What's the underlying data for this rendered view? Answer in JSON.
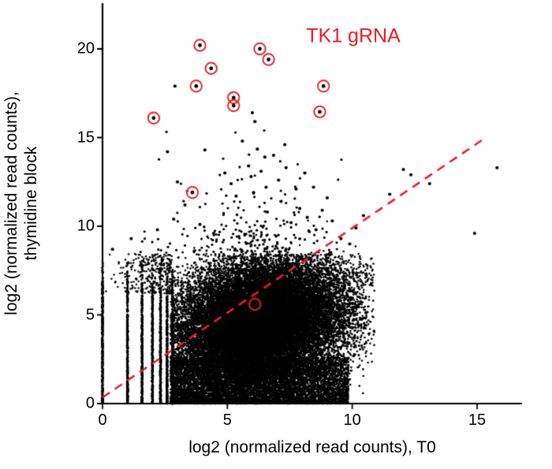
{
  "figure": {
    "annotation": "TK1 gRNA",
    "annotation_color": "#ed1c24"
  },
  "axes": {
    "xlabel": "log2 (normalized read counts), T0",
    "ylabel": [
      "log2 (normalized read counts),",
      "thymidine block"
    ],
    "x_ticks": [
      "0",
      "5",
      "10",
      "15"
    ],
    "y_ticks": [
      "0",
      "5",
      "10",
      "15",
      "20"
    ],
    "x_tick_values": [
      0,
      5,
      10,
      15
    ],
    "y_tick_values": [
      0,
      5,
      10,
      15,
      20
    ],
    "x_range": [
      0,
      16.8
    ],
    "y_range": [
      0,
      22.4
    ]
  },
  "chart_data": {
    "type": "scatter",
    "title": "",
    "xlabel": "log2 (normalized read counts), T0",
    "ylabel": "log2 (normalized read counts), thymidine block",
    "xlim": [
      0,
      16.8
    ],
    "ylim": [
      0,
      22.4
    ],
    "grid": false,
    "legend": "none",
    "point_color": "#000000",
    "highlight_color": "#ed1c24",
    "highlighted_label": "TK1 gRNA",
    "highlighted_points": [
      {
        "x": 3.9,
        "y": 20.2,
        "dot": true
      },
      {
        "x": 6.3,
        "y": 20.0,
        "dot": true
      },
      {
        "x": 6.65,
        "y": 19.4,
        "dot": true
      },
      {
        "x": 4.35,
        "y": 18.9,
        "dot": true
      },
      {
        "x": 3.75,
        "y": 17.9,
        "dot": true
      },
      {
        "x": 8.85,
        "y": 17.9,
        "dot": true
      },
      {
        "x": 5.25,
        "y": 17.25,
        "dot": true
      },
      {
        "x": 5.25,
        "y": 16.8,
        "dot": true
      },
      {
        "x": 8.7,
        "y": 16.45,
        "dot": true
      },
      {
        "x": 2.05,
        "y": 16.1,
        "dot": true
      },
      {
        "x": 3.6,
        "y": 11.9,
        "dot": true
      },
      {
        "x": 6.1,
        "y": 5.6,
        "dot": false
      }
    ],
    "reference_line": {
      "style": "dashed",
      "color": "#ed1c24",
      "x1": 0,
      "y1": 0.35,
      "x2": 15.35,
      "y2": 15.0
    },
    "upper_outlier_points": [
      {
        "x": 2.9,
        "y": 17.9
      },
      {
        "x": 6.0,
        "y": 16.4
      },
      {
        "x": 6.1,
        "y": 15.9
      },
      {
        "x": 5.6,
        "y": 14.8
      },
      {
        "x": 7.3,
        "y": 14.6
      },
      {
        "x": 6.2,
        "y": 14.35
      },
      {
        "x": 2.6,
        "y": 14.2
      },
      {
        "x": 4.1,
        "y": 14.3
      },
      {
        "x": 6.85,
        "y": 14.0
      },
      {
        "x": 6.5,
        "y": 13.9
      },
      {
        "x": 5.85,
        "y": 13.4
      },
      {
        "x": 7.35,
        "y": 13.3
      },
      {
        "x": 6.35,
        "y": 13.1
      },
      {
        "x": 4.9,
        "y": 13.0
      },
      {
        "x": 8.1,
        "y": 13.0
      },
      {
        "x": 5.95,
        "y": 12.8
      },
      {
        "x": 7.05,
        "y": 12.6
      },
      {
        "x": 3.0,
        "y": 12.5
      },
      {
        "x": 5.15,
        "y": 12.4
      },
      {
        "x": 6.55,
        "y": 12.2
      },
      {
        "x": 8.45,
        "y": 12.2
      },
      {
        "x": 7.75,
        "y": 12.1
      },
      {
        "x": 6.05,
        "y": 11.9
      },
      {
        "x": 5.35,
        "y": 11.7
      },
      {
        "x": 9.0,
        "y": 11.6
      },
      {
        "x": 7.15,
        "y": 11.4
      },
      {
        "x": 3.3,
        "y": 11.2
      },
      {
        "x": 7.9,
        "y": 11.0
      },
      {
        "x": 8.8,
        "y": 10.9
      },
      {
        "x": 6.6,
        "y": 10.8
      },
      {
        "x": 2.85,
        "y": 10.4
      },
      {
        "x": 8.2,
        "y": 10.5
      },
      {
        "x": 9.2,
        "y": 10.3
      },
      {
        "x": 7.55,
        "y": 10.2
      },
      {
        "x": 3.9,
        "y": 10.1
      },
      {
        "x": 10.15,
        "y": 9.9
      },
      {
        "x": 8.55,
        "y": 9.8
      },
      {
        "x": 4.45,
        "y": 9.6
      },
      {
        "x": 9.55,
        "y": 9.3
      },
      {
        "x": 9.9,
        "y": 9.0
      },
      {
        "x": 10.45,
        "y": 10.6
      },
      {
        "x": 11.5,
        "y": 11.8
      },
      {
        "x": 12.05,
        "y": 13.2
      },
      {
        "x": 12.35,
        "y": 12.9
      },
      {
        "x": 13.1,
        "y": 12.4
      },
      {
        "x": 14.9,
        "y": 9.6
      },
      {
        "x": 15.8,
        "y": 13.3
      },
      {
        "x": 0.4,
        "y": 8.7
      },
      {
        "x": 1.15,
        "y": 9.3
      },
      {
        "x": 2.2,
        "y": 9.8
      }
    ],
    "dense_cloud": {
      "description": "Dense cloud of ~37,000 unlabeled gRNA read-count points",
      "seed": 7,
      "core": {
        "n": 26000,
        "x_mean": 6.3,
        "x_sd": 1.75,
        "y_mean": 4.55,
        "y_sd": 1.85,
        "x_min": 2.72,
        "x_max": 10.9,
        "y_top": 8.45,
        "corr": 0.22
      },
      "bottom_band": {
        "n": 6500,
        "x_min": 2.72,
        "x_max": 9.85,
        "y_max": 2.6
      },
      "discrete_stripes": {
        "x_values": [
          0,
          1,
          1.585,
          2,
          2.322,
          2.585,
          2.807
        ],
        "n_per": 430,
        "y_top": [
          6.9,
          6.9,
          6.8,
          6.8,
          6.6,
          6.5,
          6.5
        ]
      },
      "left_fuzz": {
        "n": 420,
        "x_max": 2.8,
        "y_min": 6.2,
        "y_max": 8.45
      },
      "mid_scatter": {
        "n": 230,
        "x_mean": 5.9,
        "x_sd": 1.9,
        "y_base": 8.5,
        "y_exp_scale": 1.6,
        "y_max": 16.3
      }
    }
  }
}
